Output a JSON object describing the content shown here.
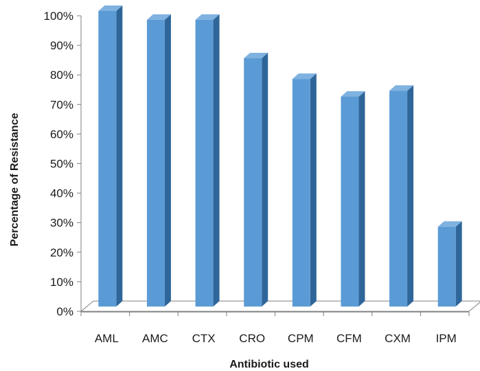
{
  "chart_data": {
    "type": "bar",
    "style": "3d-column",
    "xlabel": "Antibiotic used",
    "ylabel": "Percentage of Resistance",
    "categories": [
      "AML",
      "AMC",
      "CTX",
      "CRO",
      "CPM",
      "CFM",
      "CXM",
      "IPM"
    ],
    "values": [
      100,
      97,
      97,
      84,
      77,
      71,
      73,
      27
    ],
    "ylim": [
      0,
      100
    ],
    "yticks": [
      "0%",
      "10%",
      "20%",
      "30%",
      "40%",
      "50%",
      "60%",
      "70%",
      "80%",
      "90%",
      "100%"
    ],
    "grid": false,
    "legend": "none",
    "colors": {
      "bar_front": "#5b9bd5",
      "bar_side": "#2f6699",
      "bar_top": "#7fb2e0",
      "axis": "#7f7f7f"
    }
  }
}
